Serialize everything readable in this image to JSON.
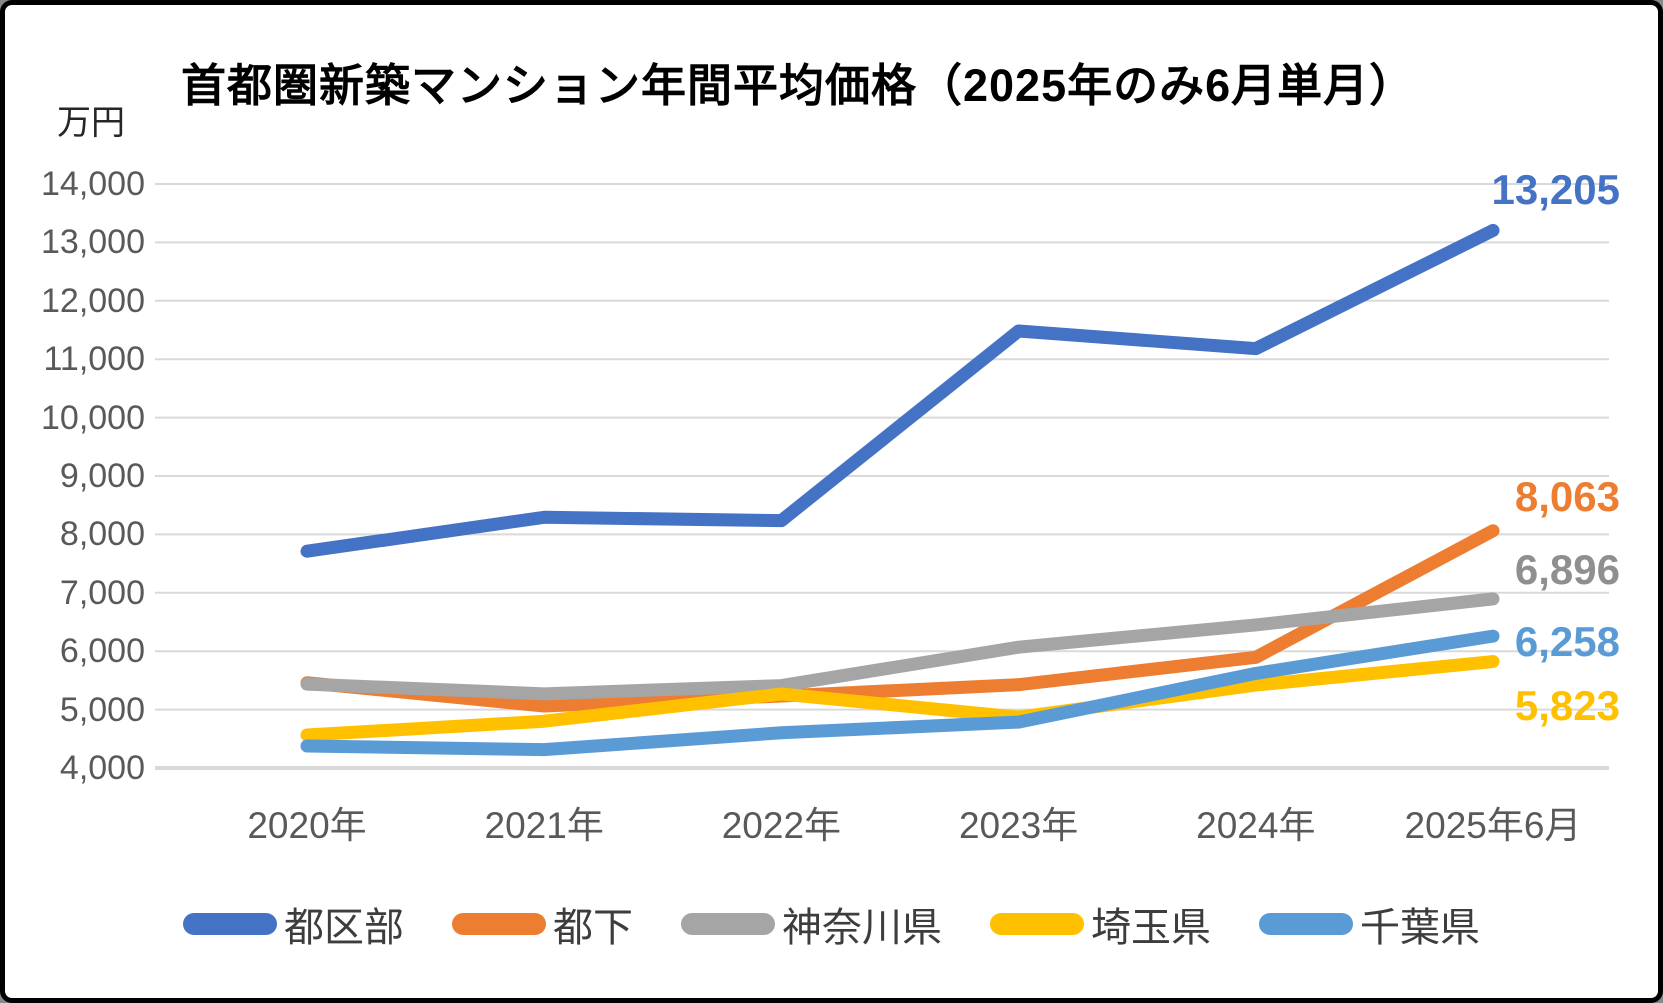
{
  "chart_data": {
    "type": "line",
    "title": "首都圏新築マンション年間平均価格（2025年のみ6月単月）",
    "unit_label": "万円",
    "categories": [
      "2020年",
      "2021年",
      "2022年",
      "2023年",
      "2024年",
      "2025年6月"
    ],
    "y_ticks": [
      "14,000",
      "13,000",
      "12,000",
      "11,000",
      "10,000",
      "9,000",
      "8,000",
      "7,000",
      "6,000",
      "5,000",
      "4,000"
    ],
    "ylim": [
      4000,
      14000
    ],
    "grid": true,
    "legend_position": "bottom",
    "gridline_color": "#D9D9D9",
    "axis_text_color": "#595959",
    "series": [
      {
        "key": "tokubu",
        "name": "都区部",
        "color": "#4472C4",
        "values": [
          7712,
          8293,
          8236,
          11483,
          11181,
          13205
        ],
        "end_label": "13,205",
        "end_label_color": "#4472C4"
      },
      {
        "key": "toka",
        "name": "都下",
        "color": "#ED7D31",
        "values": [
          5460,
          5061,
          5233,
          5427,
          5895,
          8063
        ],
        "end_label": "8,063",
        "end_label_color": "#ED7D31"
      },
      {
        "key": "kanagawa",
        "name": "神奈川県",
        "color": "#A5A5A5",
        "values": [
          5436,
          5270,
          5411,
          6069,
          6450,
          6896
        ],
        "end_label": "6,896",
        "end_label_color": "#8F8F8F"
      },
      {
        "key": "saitama",
        "name": "埼玉県",
        "color": "#FFC000",
        "values": [
          4565,
          4801,
          5267,
          4870,
          5420,
          5823
        ],
        "end_label": "5,823",
        "end_label_color": "#FFC000"
      },
      {
        "key": "chiba",
        "name": "千葉県",
        "color": "#5B9BD5",
        "values": [
          4377,
          4314,
          4603,
          4786,
          5620,
          6258
        ],
        "end_label": "6,258",
        "end_label_color": "#5B9BD5"
      }
    ]
  }
}
